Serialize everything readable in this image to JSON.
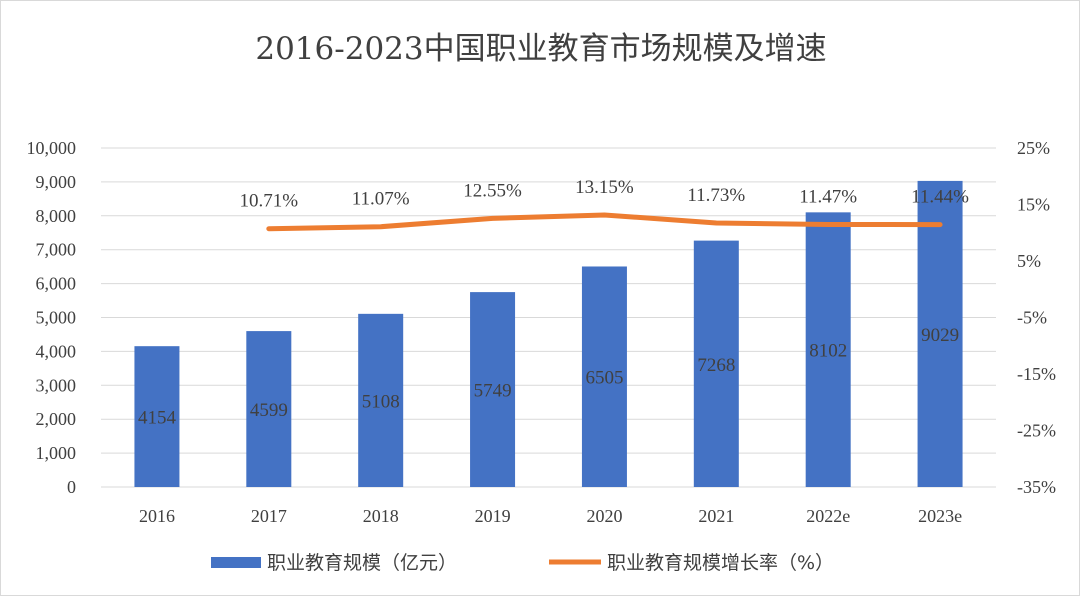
{
  "chart_data": {
    "type": "bar",
    "title": "2016-2023中国职业教育市场规模及增速",
    "categories": [
      "2016",
      "2017",
      "2018",
      "2019",
      "2020",
      "2021",
      "2022e",
      "2023e"
    ],
    "series": [
      {
        "name": "职业教育规模（亿元）",
        "type": "bar",
        "axis": "left",
        "color": "#4472C4",
        "values": [
          4154,
          4599,
          5108,
          5749,
          6505,
          7268,
          8102,
          9029
        ],
        "labels": [
          "4154",
          "4599",
          "5108",
          "5749",
          "6505",
          "7268",
          "8102",
          "9029"
        ]
      },
      {
        "name": "职业教育规模增长率（%）",
        "type": "line",
        "axis": "right",
        "color": "#ED7D31",
        "values": [
          null,
          10.71,
          11.07,
          12.55,
          13.15,
          11.73,
          11.47,
          11.44
        ],
        "labels": [
          "",
          "10.71%",
          "11.07%",
          "12.55%",
          "13.15%",
          "11.73%",
          "11.47%",
          "11.44%"
        ]
      }
    ],
    "y_left": {
      "lim": [
        0,
        10000
      ],
      "ticks": [
        "0",
        "1,000",
        "2,000",
        "3,000",
        "4,000",
        "5,000",
        "6,000",
        "7,000",
        "8,000",
        "9,000",
        "10,000"
      ]
    },
    "y_right": {
      "lim": [
        -35,
        25
      ],
      "ticks": [
        "-35%",
        "-25%",
        "-15%",
        "-5%",
        "5%",
        "15%",
        "25%"
      ]
    },
    "grid": true,
    "legend_position": "bottom"
  }
}
